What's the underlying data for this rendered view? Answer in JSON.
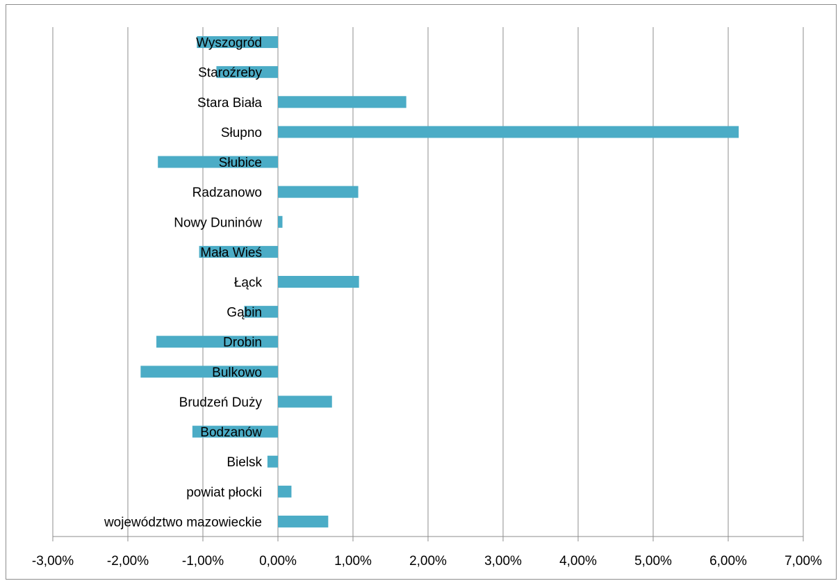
{
  "chart_data": {
    "type": "bar",
    "orientation": "horizontal",
    "title": "",
    "xlabel": "",
    "ylabel": "",
    "categories": [
      "Wyszogród",
      "Staroźreby",
      "Stara Biała",
      "Słupno",
      "Słubice",
      "Radzanowo",
      "Nowy Duninów",
      "Mała Wieś",
      "Łąck",
      "Gąbin",
      "Drobin",
      "Bulkowo",
      "Brudzeń Duży",
      "Bodzanów",
      "Bielsk",
      "powiat płocki",
      "województwo mazowieckie"
    ],
    "values": [
      -1.08,
      -0.82,
      1.71,
      6.14,
      -1.6,
      1.07,
      0.06,
      -1.05,
      1.08,
      -0.45,
      -1.62,
      -1.83,
      0.72,
      -1.14,
      -0.14,
      0.18,
      0.67
    ],
    "xlim": [
      -3,
      7
    ],
    "xticks": [
      -3,
      -2,
      -1,
      0,
      1,
      2,
      3,
      4,
      5,
      6,
      7
    ],
    "xtick_labels": [
      "-3,00%",
      "-2,00%",
      "-1,00%",
      "0,00%",
      "1,00%",
      "2,00%",
      "3,00%",
      "4,00%",
      "5,00%",
      "6,00%",
      "7,00%"
    ],
    "unit": "%",
    "grid": "vertical",
    "legend": "none",
    "colors": {
      "bar": "#4BACC6",
      "grid": "#8c8c8c",
      "axis": "#8c8c8c"
    }
  }
}
